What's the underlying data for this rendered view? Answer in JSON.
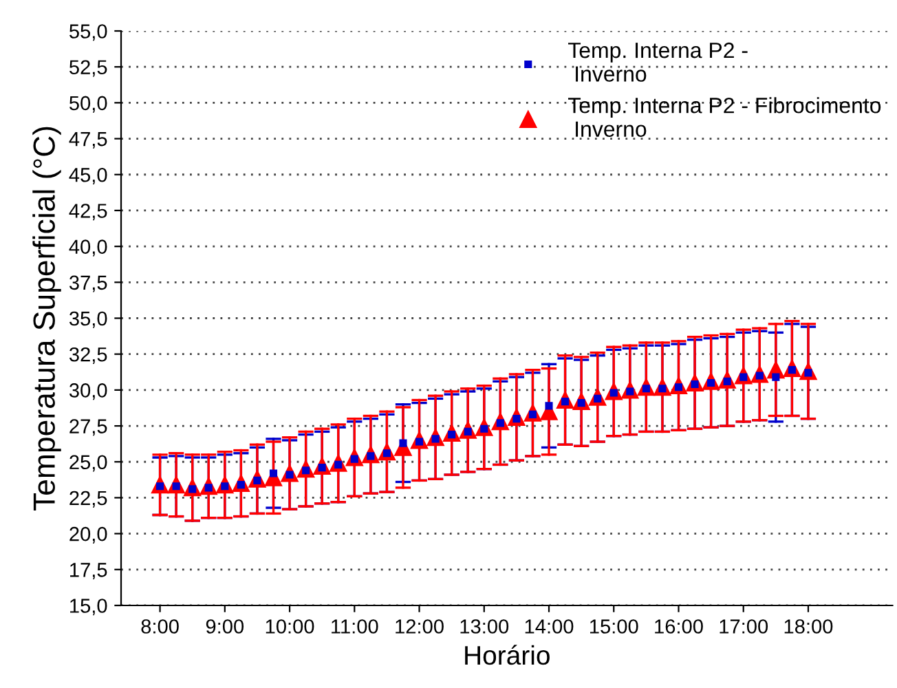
{
  "chart_data": {
    "type": "scatter",
    "xlabel": "Horário",
    "ylabel": "Temperatura Superficial (°C)",
    "x": [
      8,
      8.25,
      8.5,
      8.75,
      9,
      9.25,
      9.5,
      9.75,
      10,
      10.25,
      10.5,
      10.75,
      11,
      11.25,
      11.5,
      11.75,
      12,
      12.25,
      12.5,
      12.75,
      13,
      13.25,
      13.5,
      13.75,
      14,
      14.25,
      14.5,
      14.75,
      15,
      15.25,
      15.5,
      15.75,
      16,
      16.25,
      16.5,
      16.75,
      17,
      17.25,
      17.5,
      17.75,
      18
    ],
    "series": [
      {
        "name": "Temp. Interna P2 -\n Inverno",
        "color": "#0000cc",
        "marker": "square",
        "values": [
          23.3,
          23.3,
          23.1,
          23.2,
          23.3,
          23.4,
          23.7,
          24.2,
          24.1,
          24.4,
          24.6,
          24.8,
          25.2,
          25.4,
          25.6,
          26.3,
          26.4,
          26.6,
          26.9,
          27.1,
          27.3,
          27.7,
          28.0,
          28.3,
          28.9,
          29.2,
          29.1,
          29.4,
          29.8,
          29.9,
          30.1,
          30.1,
          30.2,
          30.4,
          30.5,
          30.6,
          30.9,
          31.0,
          30.9,
          31.4,
          31.2
        ],
        "errors": [
          2.0,
          2.1,
          2.2,
          2.1,
          2.2,
          2.2,
          2.3,
          2.4,
          2.4,
          2.5,
          2.5,
          2.6,
          2.6,
          2.6,
          2.7,
          2.7,
          2.7,
          2.8,
          2.8,
          2.8,
          2.8,
          2.9,
          2.9,
          2.9,
          2.9,
          3.0,
          3.0,
          3.0,
          3.0,
          3.0,
          3.0,
          3.0,
          3.0,
          3.1,
          3.1,
          3.1,
          3.1,
          3.1,
          3.1,
          3.2,
          3.2
        ]
      },
      {
        "name": "Temp. Interna P2 - Fibrocimento\n Inverno",
        "color": "#ff0000",
        "marker": "triangle",
        "values": [
          23.4,
          23.4,
          23.2,
          23.3,
          23.4,
          23.5,
          23.8,
          23.9,
          24.2,
          24.5,
          24.7,
          24.9,
          25.3,
          25.5,
          25.7,
          26.0,
          26.5,
          26.7,
          27.0,
          27.2,
          27.4,
          27.8,
          28.1,
          28.4,
          28.5,
          29.3,
          29.2,
          29.5,
          29.9,
          30.0,
          30.2,
          30.2,
          30.3,
          30.5,
          30.6,
          30.7,
          31.0,
          31.1,
          31.4,
          31.5,
          31.3
        ],
        "errors": [
          2.1,
          2.2,
          2.3,
          2.2,
          2.3,
          2.3,
          2.4,
          2.5,
          2.5,
          2.6,
          2.6,
          2.7,
          2.7,
          2.7,
          2.8,
          2.8,
          2.8,
          2.9,
          2.9,
          2.9,
          2.9,
          3.0,
          3.0,
          3.0,
          3.0,
          3.1,
          3.1,
          3.1,
          3.1,
          3.1,
          3.1,
          3.1,
          3.1,
          3.2,
          3.2,
          3.2,
          3.2,
          3.2,
          3.2,
          3.3,
          3.3
        ]
      }
    ],
    "xlim": [
      7.4,
      19.3
    ],
    "xticks": [
      {
        "value": 8,
        "label": "8:00"
      },
      {
        "value": 9,
        "label": "9:00"
      },
      {
        "value": 10,
        "label": "10:00"
      },
      {
        "value": 11,
        "label": "11:00"
      },
      {
        "value": 12,
        "label": "12:00"
      },
      {
        "value": 13,
        "label": "13:00"
      },
      {
        "value": 14,
        "label": "14:00"
      },
      {
        "value": 15,
        "label": "15:00"
      },
      {
        "value": 16,
        "label": "16:00"
      },
      {
        "value": 17,
        "label": "17:00"
      },
      {
        "value": 18,
        "label": "18:00"
      }
    ],
    "ylim": [
      15,
      55
    ],
    "yticks": [
      {
        "value": 15,
        "label": "15,0"
      },
      {
        "value": 17.5,
        "label": "17,5"
      },
      {
        "value": 20,
        "label": "20,0"
      },
      {
        "value": 22.5,
        "label": "22,5"
      },
      {
        "value": 25,
        "label": "25,0"
      },
      {
        "value": 27.5,
        "label": "27,5"
      },
      {
        "value": 30,
        "label": "30,0"
      },
      {
        "value": 32.5,
        "label": "32,5"
      },
      {
        "value": 35,
        "label": "35,0"
      },
      {
        "value": 37.5,
        "label": "37,5"
      },
      {
        "value": 40,
        "label": "40,0"
      },
      {
        "value": 42.5,
        "label": "42,5"
      },
      {
        "value": 45,
        "label": "45,0"
      },
      {
        "value": 47.5,
        "label": "47,5"
      },
      {
        "value": 50,
        "label": "50,0"
      },
      {
        "value": 52.5,
        "label": "52,5"
      },
      {
        "value": 55,
        "label": "55,0"
      }
    ],
    "grid": "y",
    "legend": "top right"
  }
}
